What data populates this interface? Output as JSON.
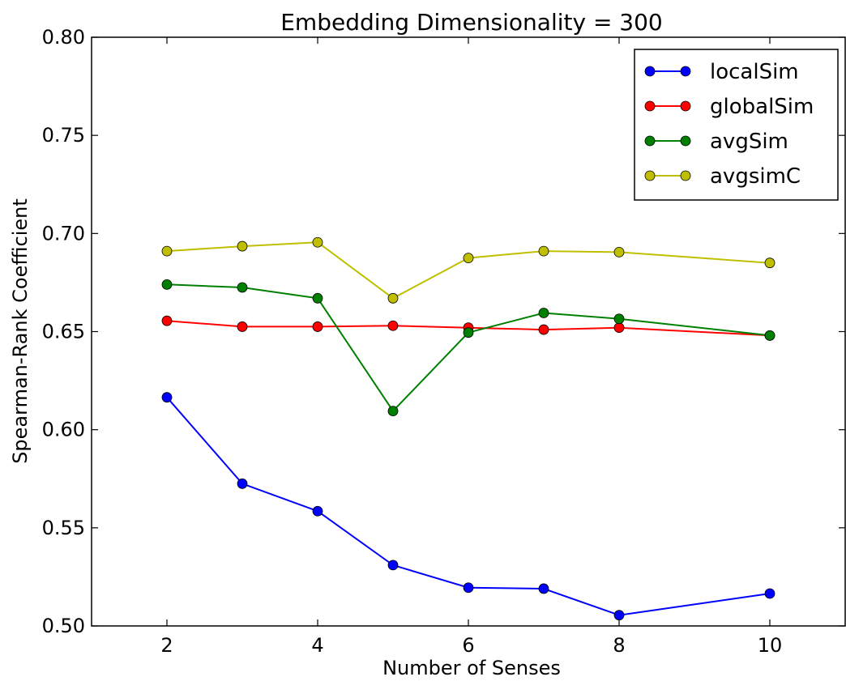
{
  "chart_data": {
    "type": "line",
    "title": "Embedding Dimensionality = 300",
    "xlabel": "Number of Senses",
    "ylabel": "Spearman-Rank Coefficient",
    "xlim": [
      1,
      11
    ],
    "ylim": [
      0.5,
      0.8
    ],
    "xticks": [
      2,
      4,
      6,
      8,
      10
    ],
    "yticks": [
      0.5,
      0.55,
      0.6,
      0.65,
      0.7,
      0.75,
      0.8
    ],
    "xtick_labels": [
      "2",
      "4",
      "6",
      "8",
      "10"
    ],
    "ytick_labels": [
      "0.50",
      "0.55",
      "0.60",
      "0.65",
      "0.70",
      "0.75",
      "0.80"
    ],
    "grid": false,
    "legend": "top-right",
    "x": [
      2,
      3,
      4,
      5,
      6,
      7,
      8,
      10
    ],
    "series": [
      {
        "name": "localSim",
        "color": "#0000ff",
        "values": [
          0.6165,
          0.5725,
          0.5585,
          0.531,
          0.5195,
          0.519,
          0.5055,
          0.5165
        ]
      },
      {
        "name": "globalSim",
        "color": "#ff0000",
        "values": [
          0.6555,
          0.6525,
          0.6525,
          0.653,
          0.652,
          0.651,
          0.652,
          0.648
        ]
      },
      {
        "name": "avgSim",
        "color": "#008000",
        "values": [
          0.674,
          0.6725,
          0.667,
          0.6095,
          0.6495,
          0.6595,
          0.6565,
          0.648
        ]
      },
      {
        "name": "avgsimC",
        "color": "#bfbf00",
        "values": [
          0.691,
          0.6935,
          0.6955,
          0.667,
          0.6875,
          0.691,
          0.6905,
          0.685
        ]
      }
    ]
  }
}
